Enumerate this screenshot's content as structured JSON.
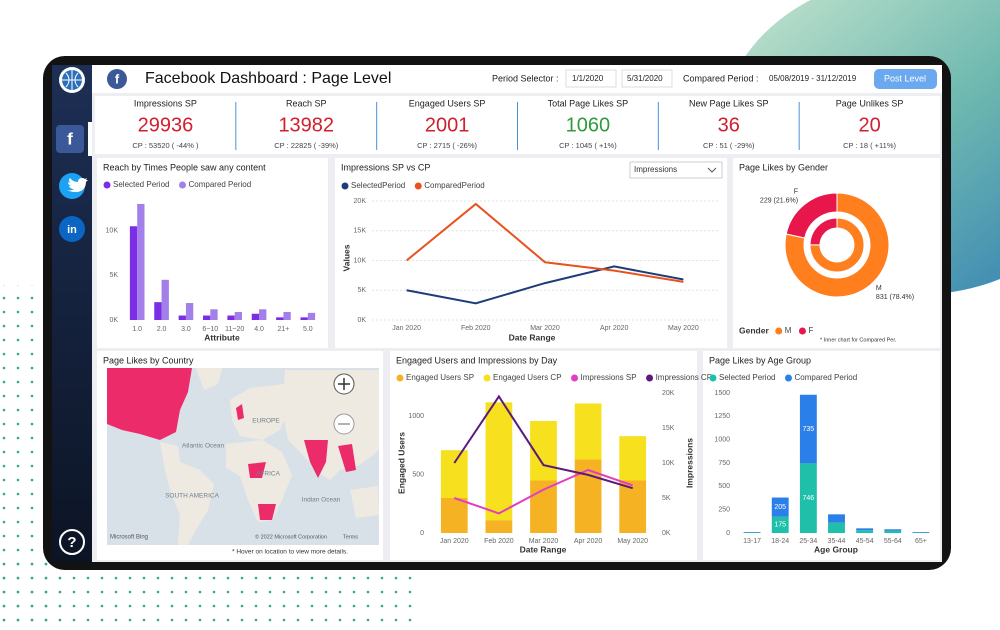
{
  "header": {
    "logo": "f",
    "title": "Facebook Dashboard : Page Level",
    "period_label": "Period Selector :",
    "period_start": "1/1/2020",
    "period_end": "5/31/2020",
    "compared_label": "Compared Period :",
    "compared_range": "05/08/2019 - 31/12/2019",
    "button": "Post Level"
  },
  "sidebar": {
    "facebook": "f",
    "linkedin": "in",
    "help": "?"
  },
  "kpis": [
    {
      "label": "Impressions SP",
      "value": 29936,
      "cp": "CP : 53520 ( -44% )",
      "color": "#d0202e"
    },
    {
      "label": "Reach SP",
      "value": 13982,
      "cp": "CP : 22825 ( -39%)",
      "color": "#d0202e"
    },
    {
      "label": "Engaged Users SP",
      "value": 2001,
      "cp": "CP : 2715 ( -26%)",
      "color": "#d0202e"
    },
    {
      "label": "Total Page Likes SP",
      "value": 1060,
      "cp": "CP : 1045 ( +1%)",
      "color": "#2e9a3c"
    },
    {
      "label": "New Page Likes SP",
      "value": 36,
      "cp": "CP : 51 ( -29%)",
      "color": "#d0202e"
    },
    {
      "label": "Page Unlikes SP",
      "value": 20,
      "cp": "CP : 18 ( +11%)",
      "color": "#d0202e"
    }
  ],
  "map": {
    "title": "Page Likes by Country",
    "labels": [
      "Atlantic Ocean",
      "EUROPE",
      "AFRICA",
      "SOUTH AMERICA",
      "Indian Ocean"
    ],
    "brand": "Microsoft Bing",
    "attribution": "© 2022 Microsoft Corporation",
    "terms": "Terms",
    "note": "* Hover on location to view more details."
  },
  "chart_data": [
    {
      "type": "bar",
      "title": "Reach by Times People saw any content",
      "categories": [
        "1.0",
        "2.0",
        "3.0",
        "6~10",
        "11~20",
        "4.0",
        "21+",
        "5.0"
      ],
      "series": [
        {
          "name": "Selected Period",
          "color": "#7b2ee6",
          "values": [
            10500,
            2000,
            500,
            500,
            500,
            700,
            300,
            300
          ]
        },
        {
          "name": "Compared Period",
          "color": "#a27fe9",
          "values": [
            13000,
            4500,
            1900,
            1200,
            900,
            1200,
            900,
            800
          ]
        }
      ],
      "xlabel": "Attribute",
      "ylim": [
        0,
        14000
      ],
      "yticks": [
        {
          "value": 0,
          "label": "0K"
        },
        {
          "value": 5000,
          "label": "5K"
        },
        {
          "value": 10000,
          "label": "10K"
        }
      ]
    },
    {
      "type": "line",
      "title": "Impressions SP vs CP",
      "control": "Impressions",
      "categories": [
        "Jan 2020",
        "Feb 2020",
        "Mar 2020",
        "Apr 2020",
        "May 2020"
      ],
      "series": [
        {
          "name": "SelectedPeriod",
          "color": "#1f3c7a",
          "values": [
            5000,
            2800,
            6200,
            9000,
            6800
          ]
        },
        {
          "name": "ComparedPeriod",
          "color": "#e8531d",
          "values": [
            10000,
            19500,
            9700,
            8300,
            6400
          ]
        }
      ],
      "xlabel": "Date Range",
      "ylabel": "Values",
      "ylim": [
        0,
        21000
      ],
      "yticks": [
        {
          "value": 0,
          "label": "0K"
        },
        {
          "value": 5000,
          "label": "5K"
        },
        {
          "value": 10000,
          "label": "10K"
        },
        {
          "value": 15000,
          "label": "15K"
        },
        {
          "value": 20000,
          "label": "20K"
        }
      ],
      "grid": true
    },
    {
      "type": "pie",
      "title": "Page Likes by Gender",
      "categories": [
        "M",
        "F"
      ],
      "values": [
        831,
        229
      ],
      "value_labels": [
        "831 (78.4%)",
        "229 (21.6%)"
      ],
      "colors": [
        "#ff7f1f",
        "#e8174b"
      ],
      "inner_values": [
        785,
        260
      ],
      "legend_title": "Gender",
      "note": "* Inner chart for Compared Per."
    },
    {
      "type": "combo",
      "title": "Engaged Users and Impressions by Day",
      "categories": [
        "Jan 2020",
        "Feb 2020",
        "Mar 2020",
        "Apr 2020",
        "May 2020"
      ],
      "series": [
        {
          "name": "Engaged Users SP",
          "type": "bar",
          "color": "#f5b324",
          "values": [
            300,
            110,
            450,
            630,
            450
          ]
        },
        {
          "name": "Engaged Users CP",
          "type": "bar",
          "color": "#f7e01e",
          "values": [
            410,
            1010,
            510,
            480,
            380
          ]
        },
        {
          "name": "Impressions SP",
          "type": "line",
          "axis": "y2",
          "color": "#e23fc0",
          "values": [
            5000,
            2800,
            6200,
            9000,
            6800
          ]
        },
        {
          "name": "Impressions CP",
          "type": "line",
          "axis": "y2",
          "color": "#5a1a7e",
          "values": [
            10000,
            19500,
            9700,
            8300,
            6400
          ]
        }
      ],
      "stacked": true,
      "xlabel": "Date Range",
      "ylabel": "Engaged Users",
      "y2label": "Impressions",
      "ylim": [
        0,
        1200
      ],
      "yticks": [
        0,
        500,
        1000
      ],
      "y2lim": [
        0,
        20000
      ],
      "y2ticks": [
        {
          "value": 0,
          "label": "0K"
        },
        {
          "value": 5000,
          "label": "5K"
        },
        {
          "value": 10000,
          "label": "10K"
        },
        {
          "value": 15000,
          "label": "15K"
        },
        {
          "value": 20000,
          "label": "20K"
        }
      ]
    },
    {
      "type": "bar",
      "stacked": true,
      "title": "Page Likes by Age Group",
      "categories": [
        "13-17",
        "18-24",
        "25-34",
        "35-44",
        "45-54",
        "55-64",
        "65+"
      ],
      "series": [
        {
          "name": "Selected Period",
          "color": "#1fbfaa",
          "values": [
            5,
            175,
            746,
            110,
            30,
            25,
            5
          ]
        },
        {
          "name": "Compared Period",
          "color": "#2b7fe8",
          "values": [
            5,
            205,
            735,
            90,
            20,
            15,
            5
          ]
        }
      ],
      "xlabel": "Age Group",
      "ylim": [
        0,
        1500
      ],
      "yticks": [
        0,
        250,
        500,
        750,
        1000,
        1250,
        1500
      ]
    }
  ]
}
